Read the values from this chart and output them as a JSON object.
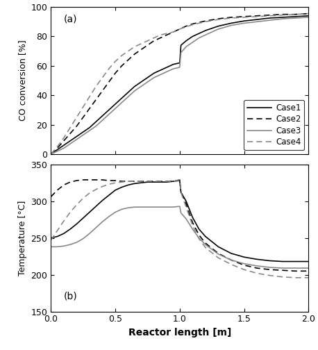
{
  "title_a": "(a)",
  "title_b": "(b)",
  "xlabel": "Reactor length [m]",
  "ylabel_a": "CO conversion [%]",
  "ylabel_b": "Temperature [°C]",
  "xlim": [
    0.0,
    2.0
  ],
  "ylim_a": [
    0,
    100
  ],
  "ylim_b": [
    150,
    350
  ],
  "xticks": [
    0.0,
    0.5,
    1.0,
    1.5,
    2.0
  ],
  "yticks_a": [
    0,
    20,
    40,
    60,
    80,
    100
  ],
  "yticks_b": [
    150,
    200,
    250,
    300,
    350
  ],
  "case1_conv_x": [
    0.0,
    0.05,
    0.1,
    0.15,
    0.2,
    0.25,
    0.3,
    0.35,
    0.4,
    0.45,
    0.5,
    0.55,
    0.6,
    0.65,
    0.7,
    0.75,
    0.8,
    0.85,
    0.9,
    0.95,
    1.0,
    1.01,
    1.05,
    1.1,
    1.15,
    1.2,
    1.3,
    1.4,
    1.5,
    1.6,
    1.7,
    1.8,
    1.9,
    2.0
  ],
  "case1_conv_y": [
    0,
    3,
    6,
    9,
    12,
    15,
    18,
    22,
    26,
    30,
    34,
    38,
    42,
    46,
    49,
    52,
    55,
    57,
    59,
    61,
    62,
    74,
    77,
    80,
    82,
    84,
    87,
    89,
    90.5,
    91.5,
    92.5,
    93,
    93.5,
    94
  ],
  "case2_conv_x": [
    0.0,
    0.05,
    0.1,
    0.15,
    0.2,
    0.25,
    0.3,
    0.35,
    0.4,
    0.45,
    0.5,
    0.55,
    0.6,
    0.65,
    0.7,
    0.75,
    0.8,
    0.85,
    0.9,
    0.95,
    1.0,
    1.05,
    1.1,
    1.15,
    1.2,
    1.3,
    1.4,
    1.5,
    1.6,
    1.7,
    1.8,
    1.9,
    2.0
  ],
  "case2_conv_y": [
    0,
    4,
    9,
    14,
    19,
    25,
    31,
    37,
    43,
    49,
    55,
    60,
    64,
    68,
    71,
    74,
    77,
    79,
    81,
    83,
    85,
    87,
    88.5,
    89.5,
    90.5,
    92,
    93,
    93.5,
    94,
    94.5,
    95,
    95,
    95.5
  ],
  "case3_conv_x": [
    0.0,
    0.05,
    0.1,
    0.15,
    0.2,
    0.25,
    0.3,
    0.35,
    0.4,
    0.45,
    0.5,
    0.55,
    0.6,
    0.65,
    0.7,
    0.75,
    0.8,
    0.85,
    0.9,
    0.95,
    1.0,
    1.01,
    1.05,
    1.1,
    1.15,
    1.2,
    1.3,
    1.4,
    1.5,
    1.6,
    1.7,
    1.8,
    1.9,
    2.0
  ],
  "case3_conv_y": [
    0,
    2,
    4,
    7,
    10,
    13,
    16,
    19,
    23,
    27,
    31,
    35,
    39,
    43,
    46,
    49,
    52,
    54,
    56,
    58,
    59,
    69,
    73,
    76,
    79,
    81,
    85,
    87.5,
    89,
    90,
    91,
    92,
    92.5,
    93
  ],
  "case4_conv_x": [
    0.0,
    0.05,
    0.1,
    0.15,
    0.2,
    0.25,
    0.3,
    0.35,
    0.4,
    0.45,
    0.5,
    0.55,
    0.6,
    0.65,
    0.7,
    0.75,
    0.8,
    0.85,
    0.9,
    0.95,
    1.0,
    1.05,
    1.1,
    1.15,
    1.2,
    1.3,
    1.4,
    1.5,
    1.6,
    1.7,
    1.8,
    1.9,
    2.0
  ],
  "case4_conv_y": [
    0,
    5,
    11,
    18,
    25,
    32,
    39,
    46,
    52,
    58,
    63,
    67,
    70,
    73,
    75,
    77,
    79,
    81,
    82,
    83,
    85,
    86.5,
    88,
    89,
    90,
    91.5,
    92.5,
    93,
    93.5,
    94,
    94.5,
    95,
    95.5
  ],
  "case1_temp_x": [
    0.0,
    0.05,
    0.1,
    0.15,
    0.2,
    0.25,
    0.3,
    0.35,
    0.4,
    0.45,
    0.5,
    0.55,
    0.6,
    0.65,
    0.7,
    0.75,
    0.8,
    0.85,
    0.9,
    0.95,
    1.0,
    1.01,
    1.05,
    1.1,
    1.15,
    1.2,
    1.3,
    1.4,
    1.5,
    1.6,
    1.7,
    1.8,
    1.9,
    2.0
  ],
  "case1_temp_y": [
    250,
    252,
    256,
    262,
    269,
    277,
    285,
    293,
    301,
    308,
    315,
    319,
    322,
    324,
    325,
    326,
    326,
    326,
    326,
    327,
    328,
    312,
    300,
    278,
    262,
    252,
    238,
    229,
    224,
    221,
    219,
    218,
    218,
    218
  ],
  "case2_temp_x": [
    0.0,
    0.05,
    0.1,
    0.15,
    0.2,
    0.25,
    0.3,
    0.35,
    0.4,
    0.45,
    0.5,
    0.55,
    0.6,
    0.65,
    0.7,
    0.75,
    0.8,
    0.85,
    0.9,
    0.95,
    1.0,
    1.01,
    1.05,
    1.1,
    1.15,
    1.2,
    1.3,
    1.4,
    1.5,
    1.6,
    1.7,
    1.8,
    1.9,
    2.0
  ],
  "case2_temp_y": [
    306,
    315,
    322,
    326,
    328,
    329,
    329,
    329,
    329,
    328,
    328,
    327,
    327,
    327,
    327,
    327,
    327,
    327,
    327,
    327,
    329,
    313,
    296,
    271,
    254,
    243,
    229,
    220,
    213,
    209,
    207,
    206,
    205,
    205
  ],
  "case3_temp_x": [
    0.0,
    0.05,
    0.1,
    0.15,
    0.2,
    0.25,
    0.3,
    0.35,
    0.4,
    0.45,
    0.5,
    0.55,
    0.6,
    0.65,
    0.7,
    0.75,
    0.8,
    0.85,
    0.9,
    0.95,
    1.0,
    1.01,
    1.05,
    1.1,
    1.15,
    1.2,
    1.3,
    1.4,
    1.5,
    1.6,
    1.7,
    1.8,
    1.9,
    2.0
  ],
  "case3_temp_y": [
    238,
    238,
    239,
    241,
    244,
    249,
    256,
    264,
    272,
    279,
    285,
    289,
    291,
    292,
    292,
    292,
    292,
    292,
    292,
    292,
    293,
    284,
    276,
    262,
    250,
    241,
    228,
    220,
    215,
    212,
    210,
    209,
    209,
    209
  ],
  "case4_temp_x": [
    0.0,
    0.05,
    0.1,
    0.15,
    0.2,
    0.25,
    0.3,
    0.35,
    0.4,
    0.45,
    0.5,
    0.55,
    0.6,
    0.65,
    0.7,
    0.75,
    0.8,
    0.85,
    0.9,
    0.95,
    1.0,
    1.01,
    1.05,
    1.1,
    1.15,
    1.2,
    1.3,
    1.4,
    1.5,
    1.6,
    1.7,
    1.8,
    1.9,
    2.0
  ],
  "case4_temp_y": [
    247,
    260,
    273,
    285,
    295,
    304,
    311,
    316,
    320,
    323,
    325,
    326,
    327,
    327,
    327,
    327,
    327,
    327,
    327,
    327,
    329,
    312,
    292,
    267,
    249,
    237,
    223,
    214,
    207,
    202,
    199,
    197,
    196,
    196
  ]
}
